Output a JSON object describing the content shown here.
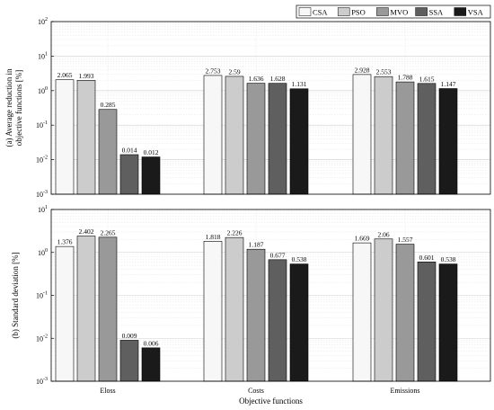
{
  "chart_data": [
    {
      "type": "bar",
      "panel": "a",
      "ylabel_lines": [
        "(a) Average reduction in",
        "objective functions [%]"
      ],
      "xlabel": "",
      "categories": [
        "Eloss",
        "Costs",
        "Emissions"
      ],
      "show_categories": false,
      "yscale": "log",
      "ylim": [
        0.001,
        100
      ],
      "yticks": [
        "10^-3",
        "10^-2",
        "10^-1",
        "10^0",
        "10^1",
        "10^2"
      ],
      "grid": true,
      "series": [
        {
          "name": "CSA",
          "values": [
            2.065,
            2.753,
            2.928
          ],
          "labels": [
            "2.065",
            "2.753",
            "2.928"
          ]
        },
        {
          "name": "PSO",
          "values": [
            1.993,
            2.59,
            2.553
          ],
          "labels": [
            "1.993",
            "2.59",
            "2.553"
          ]
        },
        {
          "name": "MVO",
          "values": [
            0.285,
            1.636,
            1.788
          ],
          "labels": [
            "0.285",
            "1.636",
            "1.788"
          ]
        },
        {
          "name": "SSA",
          "values": [
            0.014,
            1.628,
            1.615
          ],
          "labels": [
            "0.014",
            "1.628",
            "1.615"
          ]
        },
        {
          "name": "VSA",
          "values": [
            0.012,
            1.131,
            1.147
          ],
          "labels": [
            "0.012",
            "1.131",
            "1.147"
          ]
        }
      ]
    },
    {
      "type": "bar",
      "panel": "b",
      "ylabel_lines": [
        "(b) Standard deviation [%]"
      ],
      "xlabel": "Objective functions",
      "categories": [
        "Eloss",
        "Costs",
        "Emissions"
      ],
      "show_categories": true,
      "yscale": "log",
      "ylim": [
        0.001,
        10
      ],
      "yticks": [
        "10^-3",
        "10^-2",
        "10^-1",
        "10^0",
        "10^1"
      ],
      "grid": true,
      "series": [
        {
          "name": "CSA",
          "values": [
            1.376,
            1.818,
            1.669
          ],
          "labels": [
            "1.376",
            "1.818",
            "1.669"
          ]
        },
        {
          "name": "PSO",
          "values": [
            2.402,
            2.226,
            2.06
          ],
          "labels": [
            "2.402",
            "2.226",
            "2.06"
          ]
        },
        {
          "name": "MVO",
          "values": [
            2.265,
            1.187,
            1.557
          ],
          "labels": [
            "2.265",
            "1.187",
            "1.557"
          ]
        },
        {
          "name": "SSA",
          "values": [
            0.009,
            0.677,
            0.601
          ],
          "labels": [
            "0.009",
            "0.677",
            "0.601"
          ]
        },
        {
          "name": "VSA",
          "values": [
            0.006,
            0.538,
            0.538
          ],
          "labels": [
            "0.006",
            "0.538",
            "0.538"
          ]
        }
      ]
    }
  ],
  "legend": {
    "placement": "top-right",
    "items": [
      {
        "name": "CSA",
        "color": "#f7f7f7"
      },
      {
        "name": "PSO",
        "color": "#cccccc"
      },
      {
        "name": "MVO",
        "color": "#999999"
      },
      {
        "name": "SSA",
        "color": "#5f5f5f"
      },
      {
        "name": "VSA",
        "color": "#1a1a1a"
      }
    ]
  }
}
